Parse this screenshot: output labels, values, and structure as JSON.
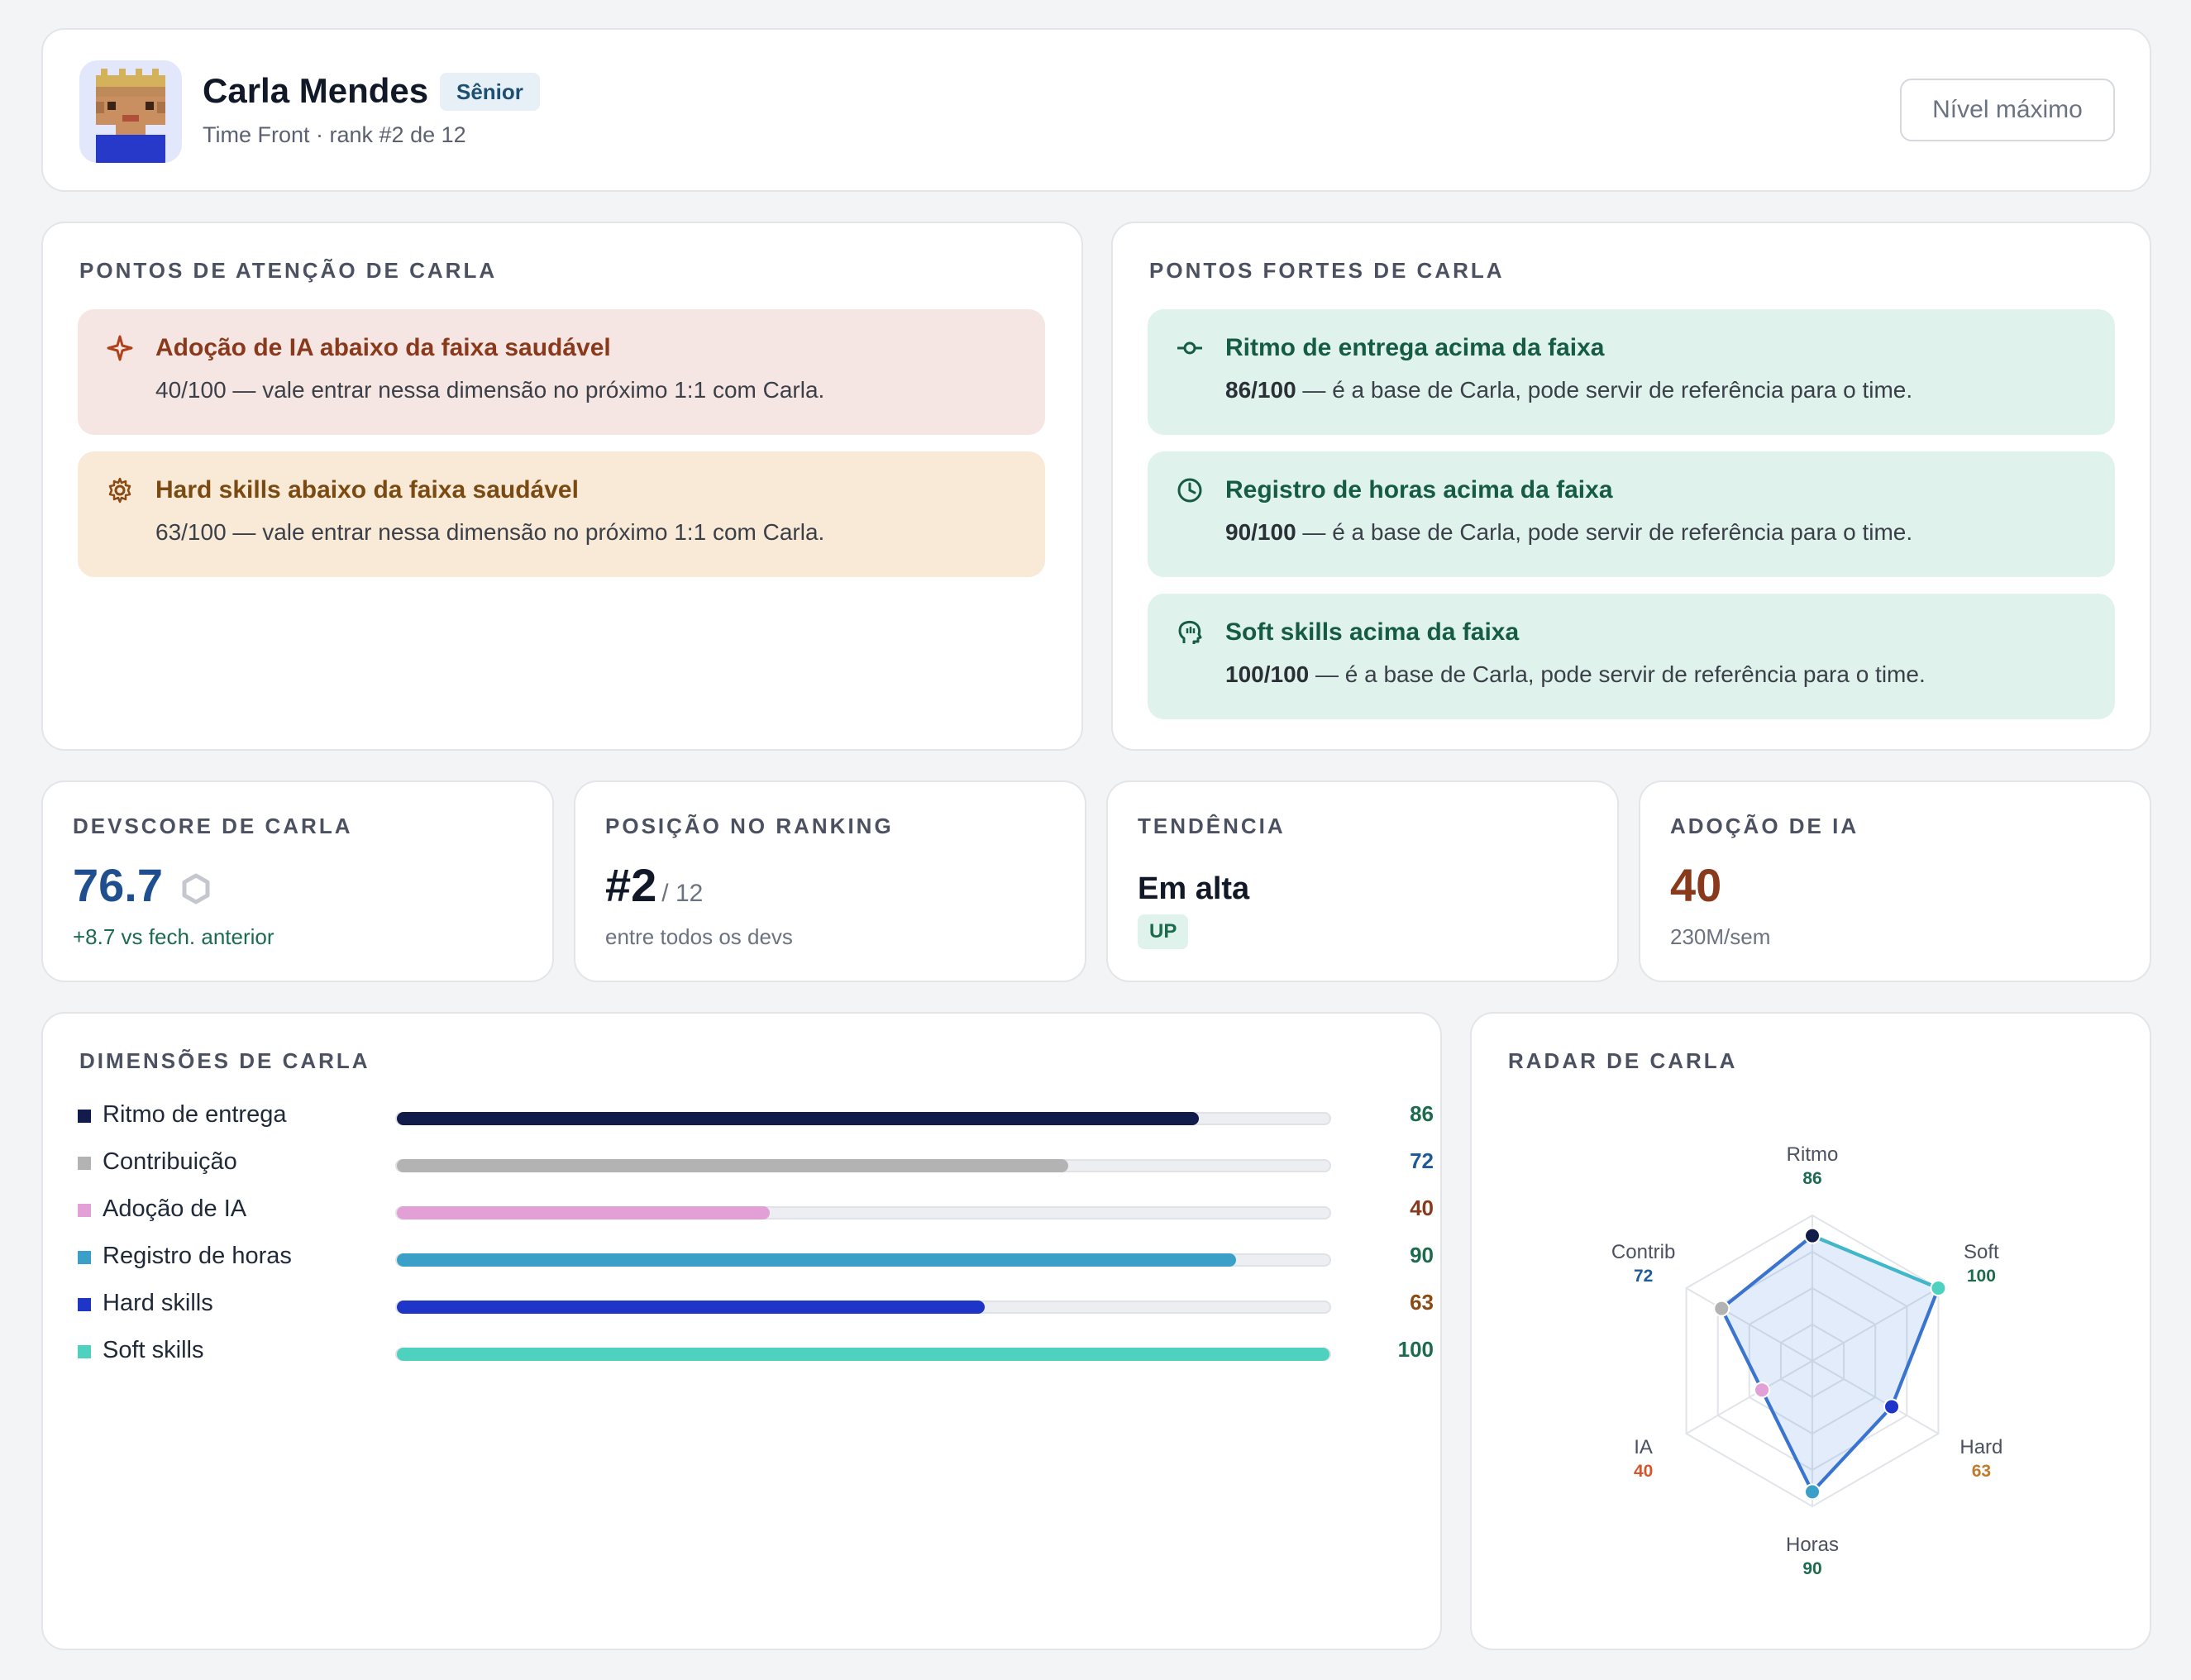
{
  "header": {
    "name": "Carla Mendes",
    "badge": "Sênior",
    "subtitle": "Time Front · rank #2 de 12",
    "level_button": "Nível máximo"
  },
  "attention": {
    "title": "PONTOS DE ATENÇÃO DE CARLA",
    "items": [
      {
        "icon": "sparkle-icon",
        "title": "Adoção de IA abaixo da faixa saudável",
        "text": "40/100 — vale entrar nessa dimensão no próximo 1:1 com Carla."
      },
      {
        "icon": "gear-icon",
        "title": "Hard skills abaixo da faixa saudável",
        "text": "63/100 — vale entrar nessa dimensão no próximo 1:1 com Carla."
      }
    ]
  },
  "strengths": {
    "title": "PONTOS FORTES DE CARLA",
    "items": [
      {
        "icon": "commit-icon",
        "title": "Ritmo de entrega acima da faixa",
        "score": "86/100",
        "text": " — é a base de Carla, pode servir de referência para o time."
      },
      {
        "icon": "clock-icon",
        "title": "Registro de horas acima da faixa",
        "score": "90/100",
        "text": " — é a base de Carla, pode servir de referência para o time."
      },
      {
        "icon": "head-icon",
        "title": "Soft skills acima da faixa",
        "score": "100/100",
        "text": " — é a base de Carla, pode servir de referência para o time."
      }
    ]
  },
  "stats": {
    "devscore": {
      "label": "DEVSCORE DE CARLA",
      "value": "76.7",
      "sub": "+8.7 vs fech. anterior"
    },
    "ranking": {
      "label": "POSIÇÃO NO RANKING",
      "value": "#2",
      "of": "/ 12",
      "sub": "entre todos os devs"
    },
    "trend": {
      "label": "TENDÊNCIA",
      "value": "Em alta",
      "badge": "UP"
    },
    "ai": {
      "label": "ADOÇÃO DE IA",
      "value": "40",
      "sub": "230M/sem"
    }
  },
  "dimensions": {
    "title": "DIMENSÕES DE CARLA",
    "items": [
      {
        "label": "Ritmo de entrega",
        "value": 86,
        "display": "86",
        "color": "#111c4a",
        "value_color": "#1d6b4f"
      },
      {
        "label": "Contribuição",
        "value": 72,
        "display": "72",
        "color": "#b3b3b3",
        "value_color": "#1f5a99"
      },
      {
        "label": "Adoção de IA",
        "value": 40,
        "display": "40",
        "color": "#e3a0d6",
        "value_color": "#8a3a1c"
      },
      {
        "label": "Registro de horas",
        "value": 90,
        "display": "90",
        "color": "#3aa0c8",
        "value_color": "#1d6b4f"
      },
      {
        "label": "Hard skills",
        "value": 63,
        "display": "63",
        "color": "#1f35c8",
        "value_color": "#8a4a12"
      },
      {
        "label": "Soft skills",
        "value": 100,
        "display": "100",
        "color": "#4fd1c0",
        "value_color": "#1d6b4f"
      }
    ]
  },
  "radar": {
    "title": "RADAR DE CARLA",
    "axes": [
      {
        "label": "Ritmo",
        "value": 86,
        "display": "86",
        "color": "#111c4a",
        "value_color": "#1d6b4f"
      },
      {
        "label": "Soft",
        "value": 100,
        "display": "100",
        "color": "#4fd1c0",
        "value_color": "#1d6b4f"
      },
      {
        "label": "Hard",
        "value": 63,
        "display": "63",
        "color": "#1f35c8",
        "value_color": "#c07a2c"
      },
      {
        "label": "Horas",
        "value": 90,
        "display": "90",
        "color": "#3aa0c8",
        "value_color": "#1d6b4f"
      },
      {
        "label": "IA",
        "value": 40,
        "display": "40",
        "color": "#e3a0d6",
        "value_color": "#d9532b"
      },
      {
        "label": "Contrib",
        "value": 72,
        "display": "72",
        "color": "#b3b3b3",
        "value_color": "#1f5a99"
      }
    ]
  }
}
